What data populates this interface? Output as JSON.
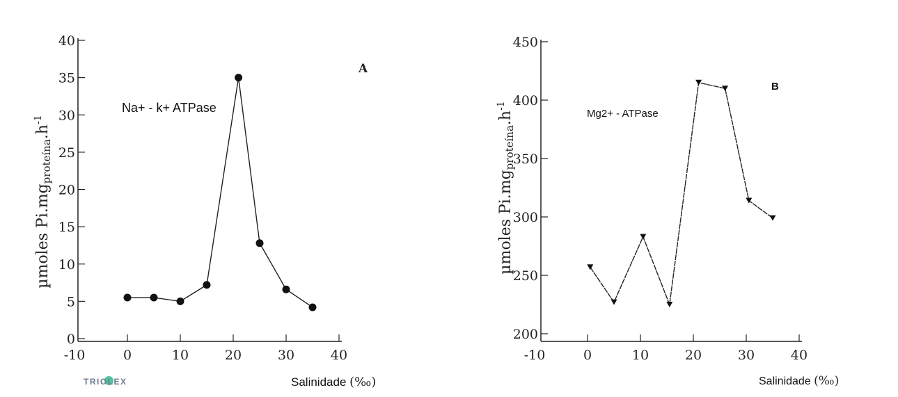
{
  "chart_data": [
    {
      "type": "line",
      "panel": "A",
      "annotation": "Na+ - k+ ATPase",
      "xlabel": "Salinidade",
      "xlabel_unit": "(‰)",
      "ylabel": {
        "main": "µmoles Pi.mg",
        "sub": "proteína",
        "tail": ".h",
        "sup": "-1"
      },
      "xlim": [
        -10,
        40
      ],
      "ylim": [
        0,
        40
      ],
      "xticks": [
        -10,
        0,
        10,
        20,
        30,
        40
      ],
      "yticks": [
        0,
        5,
        10,
        15,
        20,
        25,
        30,
        35,
        40
      ],
      "marker": "circle",
      "series": [
        {
          "name": "Na+ - k+ ATPase",
          "x": [
            0,
            5,
            10,
            15,
            21,
            25,
            30,
            35
          ],
          "y": [
            5.5,
            5.5,
            5.0,
            7.2,
            35,
            12.8,
            6.6,
            4.2
          ]
        }
      ]
    },
    {
      "type": "line",
      "panel": "B",
      "annotation": "Mg2+ - ATPase",
      "xlabel": "Salinidade",
      "xlabel_unit": "(‰)",
      "ylabel": {
        "main": "µmoles Pi.mg",
        "sub": "proteína",
        "tail": ".h",
        "sup": "-1"
      },
      "xlim": [
        -10,
        40
      ],
      "ylim": [
        200,
        450
      ],
      "xticks": [
        -10,
        0,
        10,
        20,
        30,
        40
      ],
      "yticks": [
        200,
        250,
        300,
        350,
        400,
        450
      ],
      "marker": "triangle-down",
      "series": [
        {
          "name": "Mg2+ - ATPase",
          "x": [
            0.5,
            5,
            10.5,
            15.5,
            21,
            26,
            30.5,
            35
          ],
          "y": [
            257,
            227,
            283,
            225,
            415,
            410,
            314,
            299
          ]
        }
      ]
    }
  ],
  "watermark": "TRIOLEX"
}
